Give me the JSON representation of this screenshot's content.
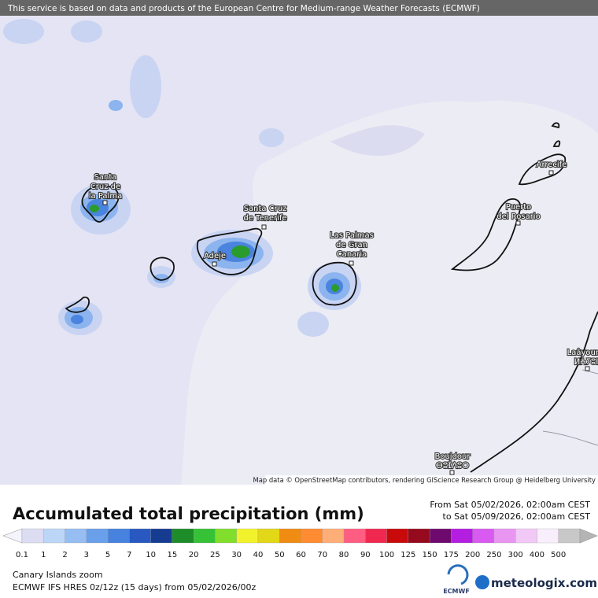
{
  "banner": "This service is based on data and products of the European Centre for Medium-range Weather Forecasts (ECMWF)",
  "map": {
    "places": [
      {
        "lines": [
          "Santa",
          "Cruz de",
          "la Palma"
        ]
      },
      {
        "lines": [
          "Santa Cruz",
          "de Tenerife"
        ]
      },
      {
        "lines": [
          "Adeje"
        ]
      },
      {
        "lines": [
          "Las Palmas",
          "de Gran",
          "Canaria"
        ]
      },
      {
        "lines": [
          "Puerto",
          "del Rosario"
        ]
      },
      {
        "lines": [
          "Arrecife"
        ]
      },
      {
        "lines": [
          "Laâyoune",
          "ⵍⵄⵢⵓⵏ"
        ]
      },
      {
        "lines": [
          "Boujdour",
          "ⴱⵓⵊⴷⵓⵔ"
        ]
      }
    ],
    "attribution": "Map data © OpenStreetMap contributors, rendering GIScience Research Group @ Heidelberg University"
  },
  "legend": {
    "title": "Accumulated total precipitation (mm)",
    "from": "From Sat 05/02/2026, 02:00am CEST",
    "to": "to Sat 05/09/2026, 02:00am CEST",
    "levels": [
      0.1,
      1,
      2,
      3,
      5,
      7,
      10,
      15,
      20,
      25,
      30,
      40,
      50,
      60,
      70,
      80,
      90,
      100,
      125,
      150,
      175,
      200,
      250,
      300,
      400,
      500
    ],
    "colors": [
      "#f4f4fc",
      "#dcdcf2",
      "#bcd6f8",
      "#96bef2",
      "#6aa0ea",
      "#4682de",
      "#2858c0",
      "#163c92",
      "#1e8c28",
      "#36c236",
      "#82de2c",
      "#f2f22c",
      "#e2d818",
      "#f08c14",
      "#ff8c32",
      "#ffae78",
      "#ff5e82",
      "#f02850",
      "#c80a0a",
      "#960a1e",
      "#6e0a6e",
      "#b41ee0",
      "#d85af0",
      "#e896f2",
      "#f2c8f6",
      "#f8eefc",
      "#c8c8c8",
      "#b4b4b4"
    ]
  },
  "footer": {
    "region": "Canary Islands zoom",
    "model": "ECMWF IFS HRES 0z/12z (15 days) from 05/02/2026/00z",
    "ecmwf": "ECMWF",
    "brand": "meteologix.com"
  }
}
